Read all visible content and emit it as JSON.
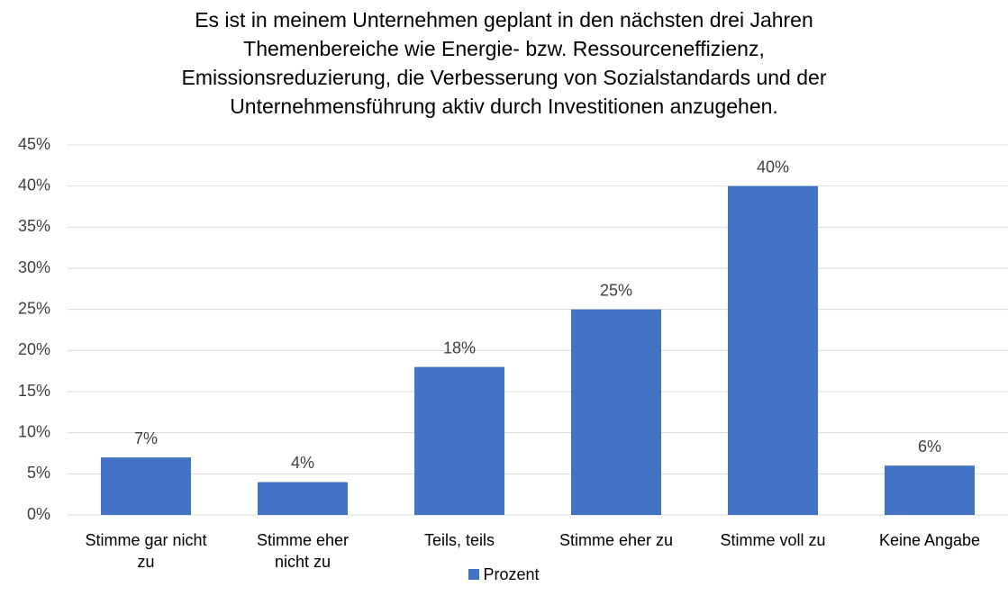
{
  "chart_data": {
    "type": "bar",
    "title": "Es ist in meinem Unternehmen geplant in den nächsten drei Jahren\nThemenbereiche wie Energie- bzw. Ressourceneffizienz,\nEmissionsreduzierung, die Verbesserung von Sozialstandards und der\nUnternehmensführung aktiv durch Investitionen anzugehen.",
    "categories": [
      "Stimme gar nicht\nzu",
      "Stimme eher\nnicht zu",
      "Teils, teils",
      "Stimme eher zu",
      "Stimme voll zu",
      "Keine Angabe"
    ],
    "series": [
      {
        "name": "Prozent",
        "color": "#4472c4",
        "values": [
          7,
          4,
          18,
          25,
          40,
          6
        ],
        "value_labels": [
          "7%",
          "4%",
          "18%",
          "25%",
          "40%",
          "6%"
        ]
      }
    ],
    "ylim": [
      0,
      45
    ],
    "yticks": [
      {
        "value": 0,
        "label": "0%"
      },
      {
        "value": 5,
        "label": "5%"
      },
      {
        "value": 10,
        "label": "10%"
      },
      {
        "value": 15,
        "label": "15%"
      },
      {
        "value": 20,
        "label": "20%"
      },
      {
        "value": 25,
        "label": "25%"
      },
      {
        "value": 30,
        "label": "30%"
      },
      {
        "value": 35,
        "label": "35%"
      },
      {
        "value": 40,
        "label": "40%"
      },
      {
        "value": 45,
        "label": "45%"
      }
    ],
    "grid": true,
    "legend": "bottom"
  }
}
